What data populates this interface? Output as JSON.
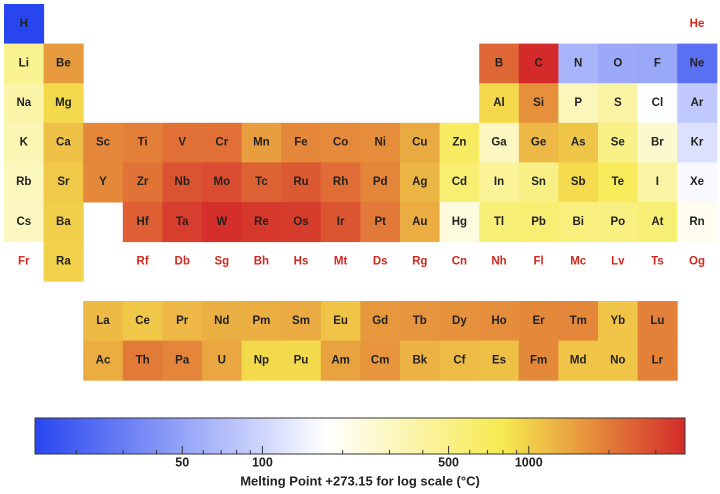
{
  "chart_data": {
    "type": "heatmap",
    "categories": [
      "H",
      "He",
      "Li",
      "Be",
      "B",
      "C",
      "N",
      "O",
      "F",
      "Ne",
      "Na",
      "Mg",
      "Al",
      "Si",
      "P",
      "S",
      "Cl",
      "Ar",
      "K",
      "Ca",
      "Sc",
      "Ti",
      "V",
      "Cr",
      "Mn",
      "Fe",
      "Co",
      "Ni",
      "Cu",
      "Zn",
      "Ga",
      "Ge",
      "As",
      "Se",
      "Br",
      "Kr",
      "Rb",
      "Sr",
      "Y",
      "Zr",
      "Nb",
      "Mo",
      "Tc",
      "Ru",
      "Rh",
      "Pd",
      "Ag",
      "Cd",
      "In",
      "Sn",
      "Sb",
      "Te",
      "I",
      "Xe",
      "Cs",
      "Ba",
      "La",
      "Ce",
      "Pr",
      "Nd",
      "Pm",
      "Sm",
      "Eu",
      "Gd",
      "Tb",
      "Dy",
      "Ho",
      "Er",
      "Tm",
      "Yb",
      "Lu",
      "Hf",
      "Ta",
      "W",
      "Re",
      "Os",
      "Ir",
      "Pt",
      "Au",
      "Hg",
      "Tl",
      "Pb",
      "Bi",
      "Po",
      "At",
      "Rn",
      "Fr",
      "Ra",
      "Ac",
      "Th",
      "Pa",
      "U",
      "Np",
      "Pu",
      "Am",
      "Cm",
      "Bk",
      "Cf",
      "Es",
      "Fm",
      "Md",
      "No",
      "Lr",
      "Rf",
      "Db",
      "Sg",
      "Bh",
      "Hs",
      "Mt",
      "Ds",
      "Rg",
      "Cn",
      "Nh",
      "Fl",
      "Mc",
      "Lv",
      "Ts",
      "Og"
    ],
    "values": [
      14,
      null,
      454,
      1560,
      2349,
      3823,
      63,
      54,
      53,
      25,
      371,
      923,
      933,
      1687,
      317,
      388,
      172,
      84,
      337,
      1115,
      1814,
      1941,
      2183,
      2180,
      1519,
      1811,
      1768,
      1728,
      1358,
      693,
      303,
      1211,
      1090,
      494,
      266,
      116,
      312,
      1050,
      1799,
      2128,
      2750,
      2896,
      2430,
      2607,
      2237,
      1828,
      1235,
      594,
      430,
      505,
      904,
      723,
      387,
      161,
      302,
      1000,
      1193,
      1068,
      1208,
      1297,
      1315,
      1345,
      1099,
      1585,
      1629,
      1680,
      1734,
      1802,
      1818,
      1097,
      1925,
      2506,
      3290,
      3695,
      3459,
      3306,
      2719,
      2041,
      1337,
      234,
      577,
      601,
      544,
      527,
      575,
      202,
      null,
      973,
      1323,
      2023,
      1841,
      1405,
      917,
      913,
      1449,
      1613,
      1259,
      1173,
      1133,
      1800,
      1100,
      1100,
      1900,
      null,
      null,
      null,
      null,
      null,
      null,
      null,
      null,
      null,
      null,
      null,
      null,
      null,
      null,
      null
    ],
    "colormap": [
      "#2846f0",
      "#ffffff",
      "#f6ea50",
      "#e6923c",
      "#d42a2a"
    ],
    "null_color": "#d0281e",
    "log_scale": true,
    "xlim": [
      14,
      3860
    ],
    "xticks": [
      50,
      100,
      500,
      1000
    ],
    "minor_xticks": [
      20,
      30,
      40,
      60,
      70,
      80,
      90,
      200,
      300,
      400,
      600,
      700,
      800,
      900,
      2000,
      3000
    ],
    "xlabel": "Melting Point +273.15 for log scale (°C)"
  }
}
